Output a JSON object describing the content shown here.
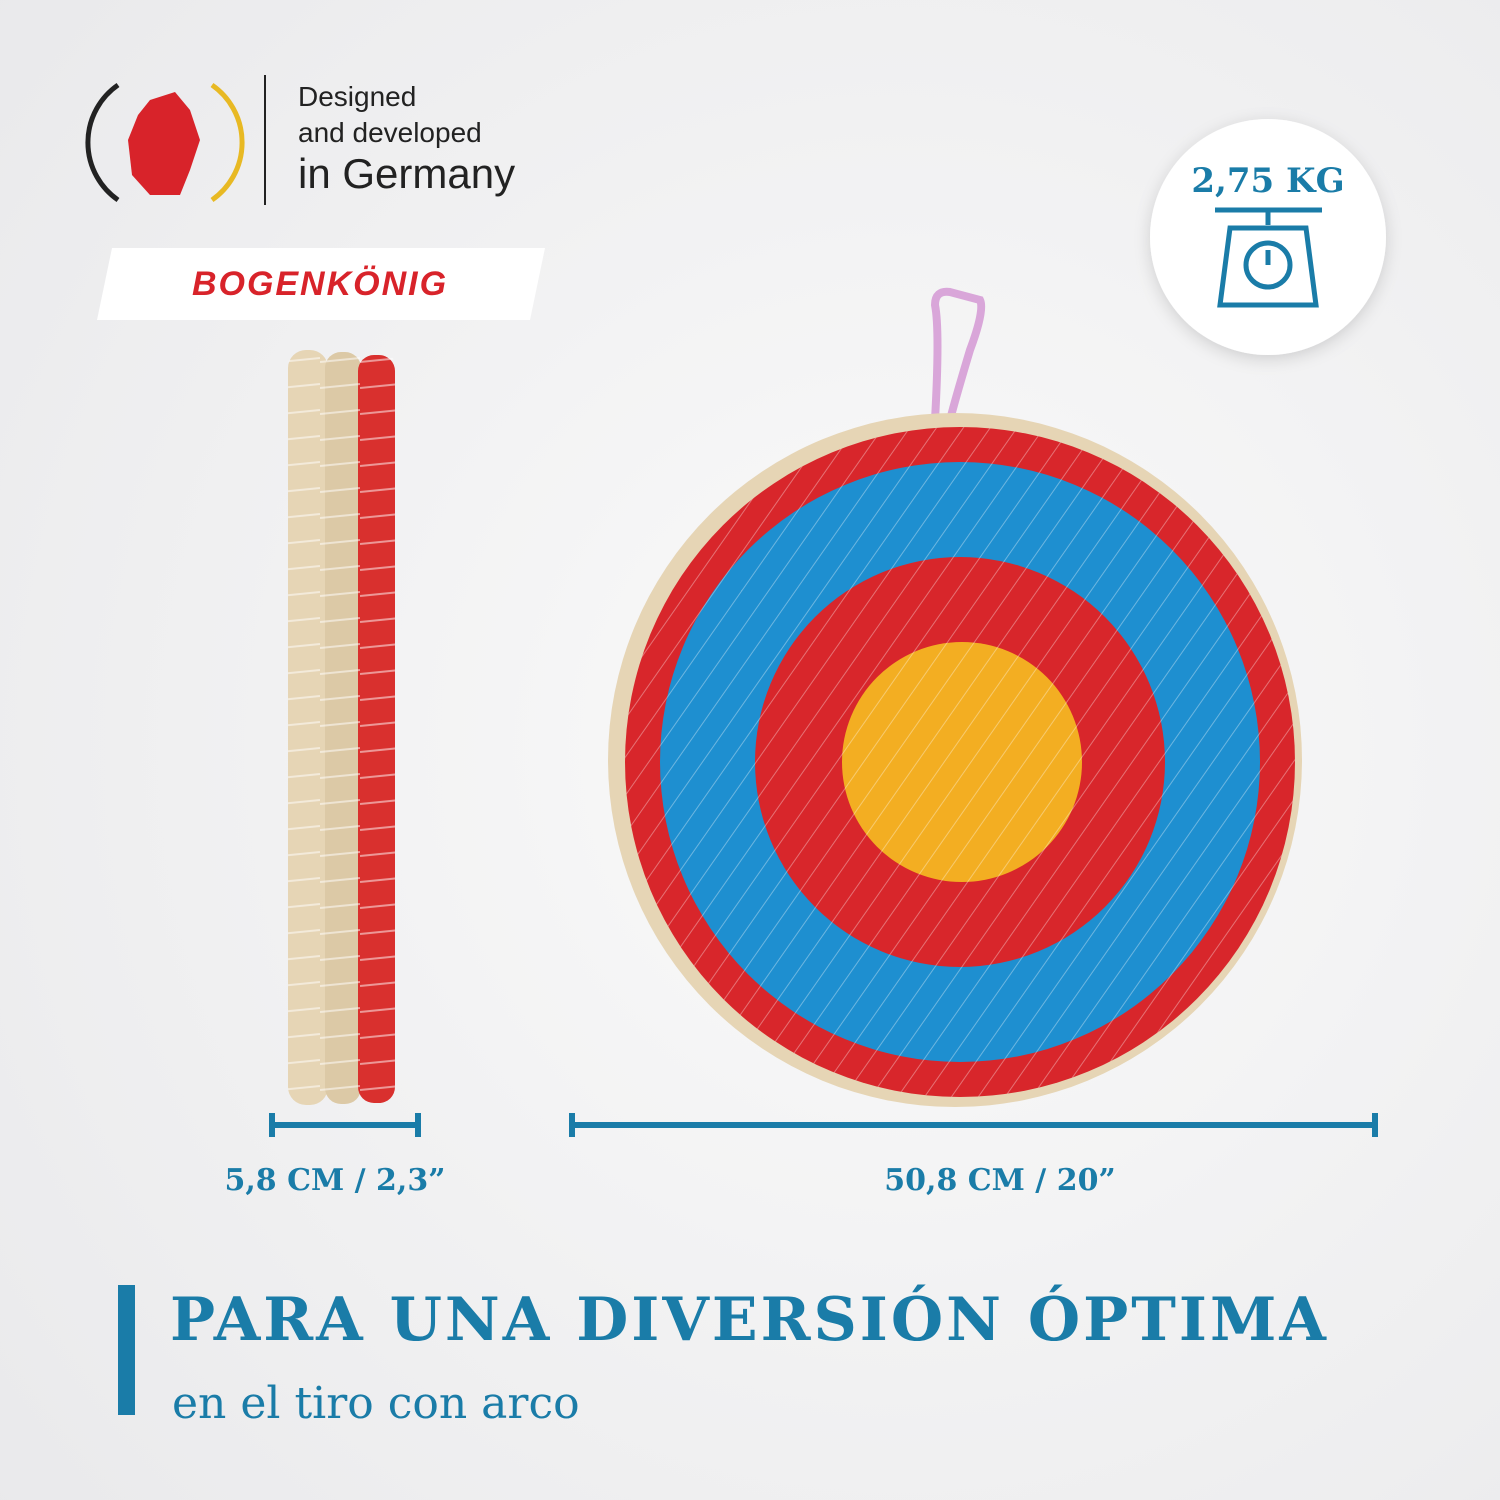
{
  "badge": {
    "line1": "Designed",
    "line2": "and developed",
    "line3": "in Germany"
  },
  "brand": "BOGENKÖNIG",
  "weight": "2,75 KG",
  "dimensions": {
    "depth": "5,8 CM / 2,3”",
    "diameter": "50,8 CM / 20”"
  },
  "headline": {
    "title": "PARA UNA DIVERSIÓN ÓPTIMA",
    "subtitle": "en el tiro con arco"
  }
}
